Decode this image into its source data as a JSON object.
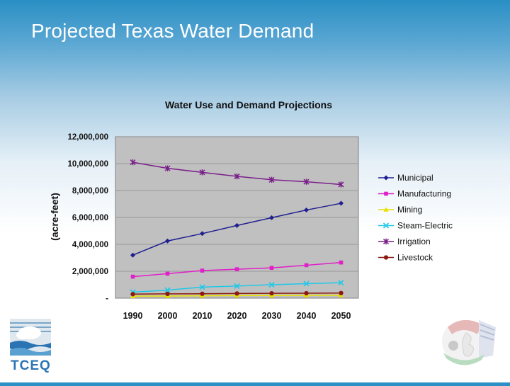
{
  "slide": {
    "title": "Projected Texas Water Demand"
  },
  "logo_left": {
    "text": "TCEQ"
  },
  "chart_data": {
    "type": "line",
    "title": "Water Use and Demand Projections",
    "xlabel": "",
    "ylabel": "(acre-feet)",
    "x": [
      "1990",
      "2000",
      "2010",
      "2020",
      "2030",
      "2040",
      "2050"
    ],
    "ylim": [
      0,
      12000000
    ],
    "yticks": [
      0,
      2000000,
      4000000,
      6000000,
      8000000,
      10000000,
      12000000
    ],
    "ytick_labels": [
      "-",
      "2,000,000",
      "4,000,000",
      "6,000,000",
      "8,000,000",
      "10,000,000",
      "12,000,000"
    ],
    "grid": true,
    "legend_position": "right",
    "series": [
      {
        "name": "Municipal",
        "color": "#1f1f8f",
        "marker": "diamond",
        "values": [
          3200000,
          4250000,
          4800000,
          5400000,
          5980000,
          6550000,
          7050000
        ]
      },
      {
        "name": "Manufacturing",
        "color": "#e020c8",
        "marker": "square",
        "values": [
          1600000,
          1820000,
          2050000,
          2150000,
          2250000,
          2450000,
          2650000
        ]
      },
      {
        "name": "Mining",
        "color": "#e8e000",
        "marker": "triangle",
        "values": [
          150000,
          160000,
          180000,
          200000,
          200000,
          210000,
          220000
        ]
      },
      {
        "name": "Steam-Electric",
        "color": "#20c8e8",
        "marker": "x",
        "values": [
          450000,
          600000,
          820000,
          900000,
          1000000,
          1080000,
          1150000
        ]
      },
      {
        "name": "Irrigation",
        "color": "#7a1f8a",
        "marker": "star",
        "values": [
          10100000,
          9650000,
          9350000,
          9050000,
          8800000,
          8650000,
          8450000
        ]
      },
      {
        "name": "Livestock",
        "color": "#8b1a10",
        "marker": "circle",
        "values": [
          300000,
          320000,
          330000,
          350000,
          360000,
          370000,
          380000
        ]
      }
    ]
  }
}
